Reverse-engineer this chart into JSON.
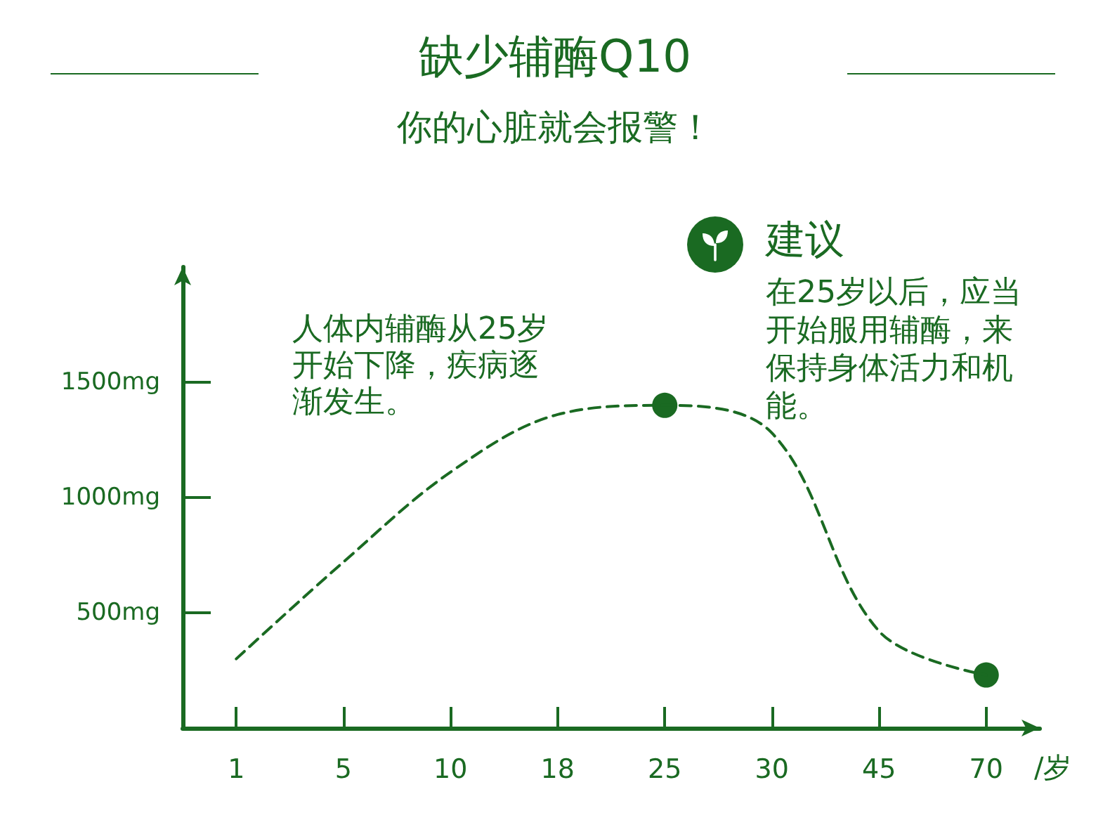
{
  "chart_data": {
    "type": "line",
    "title": "缺少辅酶Q10",
    "subtitle": "你的心脏就会报警！",
    "xlabel": "/岁",
    "categories": [
      "1",
      "5",
      "10",
      "18",
      "25",
      "30",
      "45",
      "70"
    ],
    "series": [
      {
        "color": "#1a6a22",
        "values": [
          300,
          720,
          1110,
          1360,
          1400,
          1280,
          420,
          230
        ],
        "line_style": "dashed",
        "marker": "none"
      },
      {
        "type": "scatter",
        "color": "#1a6a22",
        "values": [
          null,
          null,
          null,
          null,
          1400,
          null,
          null,
          230
        ],
        "marker": "circle"
      }
    ],
    "ylim": [
      0,
      2000
    ],
    "yticks": [
      {
        "value": 500,
        "label": "500mg"
      },
      {
        "value": 1000,
        "label": "1000mg"
      },
      {
        "value": 1500,
        "label": "1500mg"
      }
    ],
    "annotations": [
      "人体内辅酶从25岁开始下降，疾病逐渐发生。",
      "建议",
      "在25岁以后，应当开始服用辅酶，来保持身体活力和机能。"
    ]
  }
}
